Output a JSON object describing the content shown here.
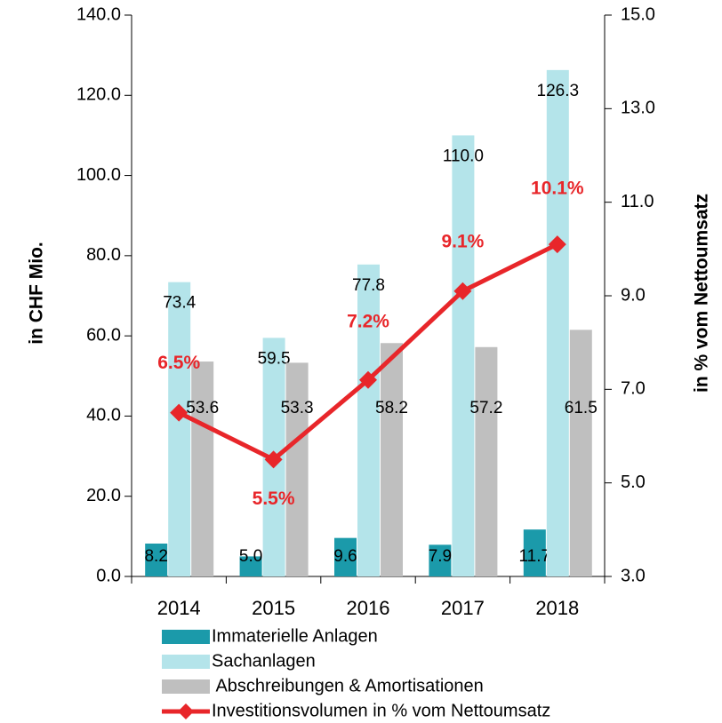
{
  "chart_data": {
    "type": "bar",
    "categories": [
      "2014",
      "2015",
      "2016",
      "2017",
      "2018"
    ],
    "ylabel": "in CHF Mio.",
    "y2label": "in % vom Nettoumsatz",
    "ylim": [
      0,
      140
    ],
    "yticks": [
      {
        "value": 0,
        "label": "0.0"
      },
      {
        "value": 20,
        "label": "20.0"
      },
      {
        "value": 40,
        "label": "40.0"
      },
      {
        "value": 60,
        "label": "60.0"
      },
      {
        "value": 80,
        "label": "80.0"
      },
      {
        "value": 100,
        "label": "100.0"
      },
      {
        "value": 120,
        "label": "120.0"
      },
      {
        "value": 140,
        "label": "140.0"
      }
    ],
    "y2lim": [
      3,
      15
    ],
    "y2ticks": [
      {
        "value": 3,
        "label": "3.0"
      },
      {
        "value": 5,
        "label": "5.0"
      },
      {
        "value": 7,
        "label": "7.0"
      },
      {
        "value": 9,
        "label": "9.0"
      },
      {
        "value": 11,
        "label": "11.0"
      },
      {
        "value": 13,
        "label": "13.0"
      },
      {
        "value": 15,
        "label": "15.0"
      }
    ],
    "legend": "bottom",
    "series": [
      {
        "name": "Immaterielle Anlagen",
        "type": "bar",
        "color": "#1b9aaa",
        "values": [
          8.2,
          5.0,
          9.6,
          7.9,
          11.7
        ],
        "value_labels": [
          "8.2",
          "5.0",
          "9.6",
          "7.9",
          "11.7"
        ]
      },
      {
        "name": "Sachanlagen",
        "type": "bar",
        "color": "#b4e4ea",
        "values": [
          73.4,
          59.5,
          77.8,
          110.0,
          126.3
        ],
        "value_labels": [
          "73.4",
          "59.5",
          "77.8",
          "110.0",
          "126.3"
        ]
      },
      {
        "name": " Abschreibungen & Amortisationen",
        "type": "bar",
        "color": "#bfbfbf",
        "values": [
          53.6,
          53.3,
          58.2,
          57.2,
          61.5
        ],
        "value_labels": [
          "53.6",
          "53.3",
          "58.2",
          "57.2",
          "61.5"
        ]
      },
      {
        "name": "Investitionsvolumen in % vom Nettoumsatz",
        "type": "line",
        "axis": "y2",
        "color": "#e8262a",
        "values": [
          6.5,
          5.5,
          7.2,
          9.1,
          10.1
        ],
        "value_labels": [
          "6.5%",
          "5.5%",
          "7.2%",
          "9.1%",
          "10.1%"
        ]
      }
    ]
  }
}
